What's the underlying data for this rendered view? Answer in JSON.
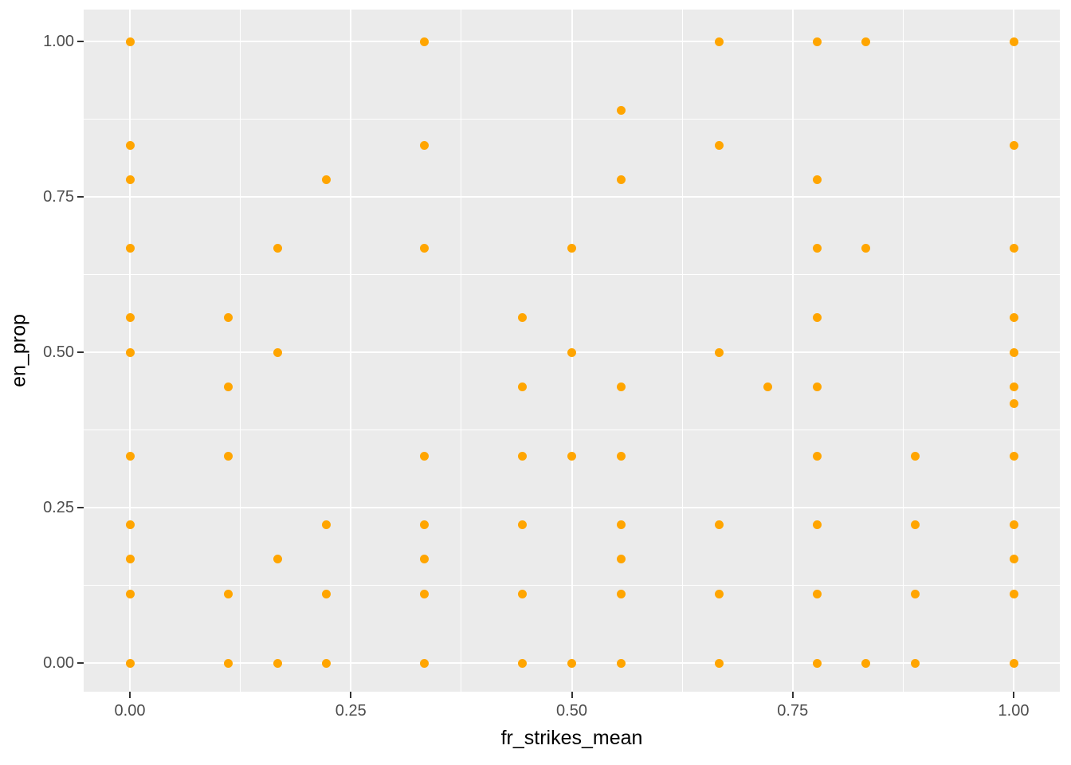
{
  "chart_data": {
    "type": "scatter",
    "title": "",
    "xlabel": "fr_strikes_mean",
    "ylabel": "en_prop",
    "xlim": [
      0,
      1
    ],
    "ylim": [
      0,
      1
    ],
    "grid": "major and minor white gridlines on grey panel",
    "legend_position": "none",
    "x_ticks": {
      "values": [
        0,
        0.25,
        0.5,
        0.75,
        1.0
      ],
      "labels": [
        "0.00",
        "0.25",
        "0.50",
        "0.75",
        "1.00"
      ]
    },
    "y_ticks": {
      "values": [
        0,
        0.25,
        0.5,
        0.75,
        1.0
      ],
      "labels": [
        "0.00",
        "0.25",
        "0.50",
        "0.75",
        "1.00"
      ]
    },
    "minor_tick_values": [
      0.125,
      0.375,
      0.625,
      0.875
    ],
    "point_color": "#FFA500",
    "panel_background": "#EBEBEB",
    "gridline_color": "#FFFFFF",
    "tick_text_color": "#4D4D4D",
    "points": [
      [
        0,
        1.0
      ],
      [
        0.333,
        1.0
      ],
      [
        0.667,
        1.0
      ],
      [
        0.778,
        1.0
      ],
      [
        0.833,
        1.0
      ],
      [
        1.0,
        1.0
      ],
      [
        0.556,
        0.889
      ],
      [
        0,
        0.833
      ],
      [
        0.333,
        0.833
      ],
      [
        0.667,
        0.833
      ],
      [
        1.0,
        0.833
      ],
      [
        0,
        0.778
      ],
      [
        0.222,
        0.778
      ],
      [
        0.556,
        0.778
      ],
      [
        0.778,
        0.778
      ],
      [
        0,
        0.667
      ],
      [
        0.167,
        0.667
      ],
      [
        0.333,
        0.667
      ],
      [
        0.5,
        0.667
      ],
      [
        0.778,
        0.667
      ],
      [
        0.833,
        0.667
      ],
      [
        1.0,
        0.667
      ],
      [
        0,
        0.556
      ],
      [
        0.111,
        0.556
      ],
      [
        0.444,
        0.556
      ],
      [
        0.778,
        0.556
      ],
      [
        1.0,
        0.556
      ],
      [
        0,
        0.5
      ],
      [
        0.167,
        0.5
      ],
      [
        0.5,
        0.5
      ],
      [
        0.667,
        0.5
      ],
      [
        1.0,
        0.5
      ],
      [
        0.111,
        0.444
      ],
      [
        0.444,
        0.444
      ],
      [
        0.556,
        0.444
      ],
      [
        0.722,
        0.444
      ],
      [
        0.778,
        0.444
      ],
      [
        1.0,
        0.444
      ],
      [
        1.0,
        0.417
      ],
      [
        0,
        0.333
      ],
      [
        0.111,
        0.333
      ],
      [
        0.333,
        0.333
      ],
      [
        0.444,
        0.333
      ],
      [
        0.5,
        0.333
      ],
      [
        0.556,
        0.333
      ],
      [
        0.778,
        0.333
      ],
      [
        0.889,
        0.333
      ],
      [
        1.0,
        0.333
      ],
      [
        0,
        0.222
      ],
      [
        0.222,
        0.222
      ],
      [
        0.333,
        0.222
      ],
      [
        0.444,
        0.222
      ],
      [
        0.556,
        0.222
      ],
      [
        0.667,
        0.222
      ],
      [
        0.778,
        0.222
      ],
      [
        0.889,
        0.222
      ],
      [
        1.0,
        0.222
      ],
      [
        0,
        0.167
      ],
      [
        0.167,
        0.167
      ],
      [
        0.333,
        0.167
      ],
      [
        0.556,
        0.167
      ],
      [
        1.0,
        0.167
      ],
      [
        0,
        0.111
      ],
      [
        0.111,
        0.111
      ],
      [
        0.222,
        0.111
      ],
      [
        0.333,
        0.111
      ],
      [
        0.444,
        0.111
      ],
      [
        0.556,
        0.111
      ],
      [
        0.667,
        0.111
      ],
      [
        0.778,
        0.111
      ],
      [
        0.889,
        0.111
      ],
      [
        1.0,
        0.111
      ],
      [
        0,
        0
      ],
      [
        0.111,
        0
      ],
      [
        0.167,
        0
      ],
      [
        0.222,
        0
      ],
      [
        0.333,
        0
      ],
      [
        0.444,
        0
      ],
      [
        0.5,
        0
      ],
      [
        0.556,
        0
      ],
      [
        0.667,
        0
      ],
      [
        0.778,
        0
      ],
      [
        0.833,
        0
      ],
      [
        0.889,
        0
      ],
      [
        1.0,
        0
      ]
    ]
  }
}
